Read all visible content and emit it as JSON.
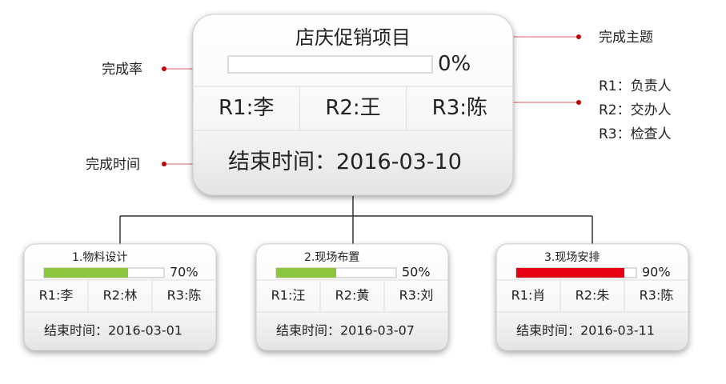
{
  "main": {
    "title": "店庆促销项目",
    "progress": 0,
    "progress_label": "0%",
    "roles": [
      "R1:李",
      "R2:王",
      "R3:陈"
    ],
    "end_date": "结束时间：2016-03-10"
  },
  "annotations": {
    "title": "完成主题",
    "rate": "完成率",
    "time": "完成时间",
    "roles": [
      "R1：负责人",
      "R2：交办人",
      "R3：检查人"
    ]
  },
  "tasks": [
    {
      "title": "1.物料设计",
      "progress": 70,
      "progress_label": "70%",
      "color": "#8cc63e",
      "roles": [
        "R1:李",
        "R2:林",
        "R3:陈"
      ],
      "end_date": "结束时间：2016-03-01"
    },
    {
      "title": "2.现场布置",
      "progress": 50,
      "progress_label": "50%",
      "color": "#8cc63e",
      "roles": [
        "R1:汪",
        "R2:黄",
        "R3:刘"
      ],
      "end_date": "结束时间：2016-03-07"
    },
    {
      "title": "3.现场安排",
      "progress": 90,
      "progress_label": "90%",
      "color": "#e60012",
      "roles": [
        "R1:肖",
        "R2:朱",
        "R3:陈"
      ],
      "end_date": "结束时间：2016-03-11"
    }
  ]
}
